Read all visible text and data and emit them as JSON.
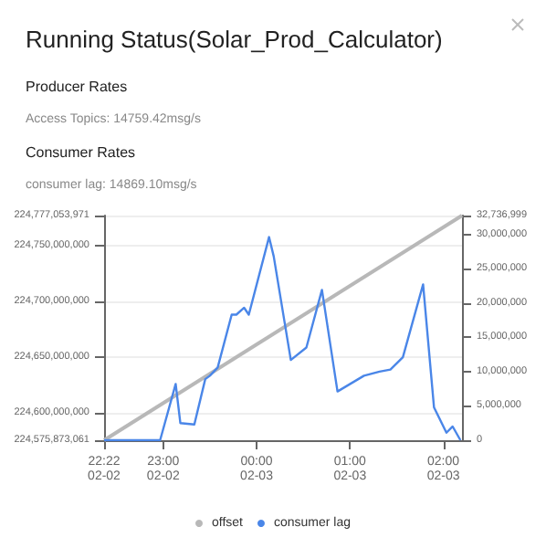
{
  "chart_data": {
    "type": "line",
    "title": "Running Status(Solar_Prod_Calculator)",
    "annotations": [
      "Producer Rates",
      "Access Topics:  14759.42msg/s",
      "Consumer Rates",
      "consumer lag:  14869.10msg/s"
    ],
    "xlim": [
      "--02-02T22:22",
      "--02-03T02:12"
    ],
    "xticks": [
      {
        "value": "--02-02T22:22",
        "label": "22:22\n02-02"
      },
      {
        "value": "--02-02T23:00",
        "label": "23:00\n02-02"
      },
      {
        "value": "--02-03T00:00",
        "label": "00:00\n02-03"
      },
      {
        "value": "--02-03T01:00",
        "label": "01:00\n02-03"
      },
      {
        "value": "--02-03T02:00",
        "label": "02:00\n02-03"
      }
    ],
    "ylim": [
      224575873061,
      224777053971
    ],
    "yticks": [
      {
        "value": 224575873061,
        "label": "224,575,873,061"
      },
      {
        "value": 224600000000,
        "label": "224,600,000,000"
      },
      {
        "value": 224650000000,
        "label": "224,650,000,000"
      },
      {
        "value": 224700000000,
        "label": "224,700,000,000"
      },
      {
        "value": 224750000000,
        "label": "224,750,000,000"
      },
      {
        "value": 224777053971,
        "label": "224,777,053,971"
      }
    ],
    "y2lim": [
      0,
      32736999
    ],
    "y2ticks": [
      0,
      {
        "value": 5000000,
        "label": "5,000,000"
      },
      {
        "value": 10000000,
        "label": "10,000,000"
      },
      {
        "value": 15000000,
        "label": "15,000,000"
      },
      {
        "value": 20000000,
        "label": "20,000,000"
      },
      {
        "value": 25000000,
        "label": "25,000,000"
      },
      {
        "value": 30000000,
        "label": "30,000,000"
      },
      {
        "value": 32736999,
        "label": "32,736,999"
      }
    ],
    "grid": "y",
    "legend": "bottom",
    "marker": "none",
    "line_style": "solid",
    "series": [
      {
        "name": "offset",
        "color": "#b8b8b8",
        "x": [
          "--02-02T22:22",
          "--02-03T02:12"
        ],
        "values": [
          224575873061,
          224777053971
        ]
      },
      {
        "name": "consumer lag",
        "color": "#4a86e8",
        "axis": "y2",
        "x": [
          "--02-02T22:22",
          "--02-02T22:58",
          "--02-02T23:08",
          "--02-02T23:11",
          "--02-02T23:20",
          "--02-02T23:27",
          "--02-02T23:30",
          "--02-02T23:35",
          "--02-02T23:44",
          "--02-02T23:47",
          "--02-02T23:52",
          "--02-02T23:55",
          "--02-03T00:08",
          "--02-03T00:11",
          "--02-03T00:22",
          "--02-03T00:32",
          "--02-03T00:42",
          "--02-03T00:52",
          "--02-03T01:09",
          "--02-03T01:19",
          "--02-03T01:26",
          "--02-03T01:34",
          "--02-03T01:47",
          "--02-03T01:54",
          "--02-03T02:02",
          "--02-03T02:06",
          "--02-03T02:11"
        ],
        "values": [
          0,
          0,
          8200000,
          2500000,
          2300000,
          8900000,
          9400000,
          10600000,
          18300000,
          18300000,
          19300000,
          18300000,
          29600000,
          26800000,
          11700000,
          13500000,
          21900000,
          7100000,
          9400000,
          10000000,
          10300000,
          12100000,
          22700000,
          4800000,
          1100000,
          2000000,
          0
        ]
      }
    ]
  }
}
